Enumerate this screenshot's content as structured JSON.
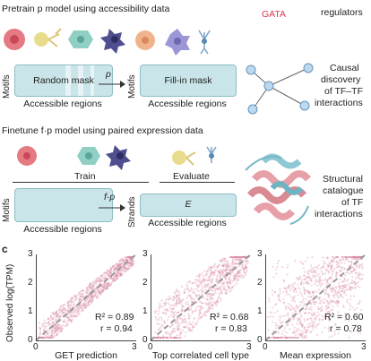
{
  "top": {
    "pretrain_title": "Pretrain p model using accessibility data",
    "gata_label": "GATA",
    "regulators_label": "regulators",
    "motifs_left": "Motifs",
    "random_mask": "Random mask",
    "p_label": "p",
    "motifs_right": "Motifs",
    "fill_in_mask": "Fill-in mask",
    "accessible_left": "Accessible regions",
    "accessible_right": "Accessible regions",
    "causal_text": [
      "Causal",
      "discovery",
      "of TF–TF",
      "interactions"
    ]
  },
  "middle": {
    "finetune_title": "Finetune f·p model using paired expression data",
    "train_label": "Train",
    "evaluate_label": "Evaluate",
    "motifs_label": "Motifs",
    "fp_label": "f·p",
    "strands_label": "Strands",
    "e_label": "E",
    "accessible_left": "Accessible regions",
    "accessible_right": "Accessible regions",
    "structural_text": [
      "Structural",
      "catalogue",
      "of TF",
      "interactions"
    ]
  },
  "panel_c": {
    "panel_letter": "c",
    "ylabel": "Observed log(TPM)",
    "plots": [
      {
        "xlabel": "GET prediction",
        "r2": "R² = 0.89",
        "r": "r = 0.94"
      },
      {
        "xlabel": "Top correlated cell type",
        "r2": "R² = 0.68",
        "r": "r = 0.83"
      },
      {
        "xlabel": "Mean expression",
        "r2": "R² = 0.60",
        "r": "r = 0.78"
      }
    ],
    "yticks": [
      "3",
      "2",
      "1",
      "0"
    ],
    "xticks": [
      "0",
      "3"
    ]
  },
  "colors": {
    "box_fill": "#c9e5e9",
    "scatter": "#d98aa5",
    "gata": "#e0334f"
  }
}
